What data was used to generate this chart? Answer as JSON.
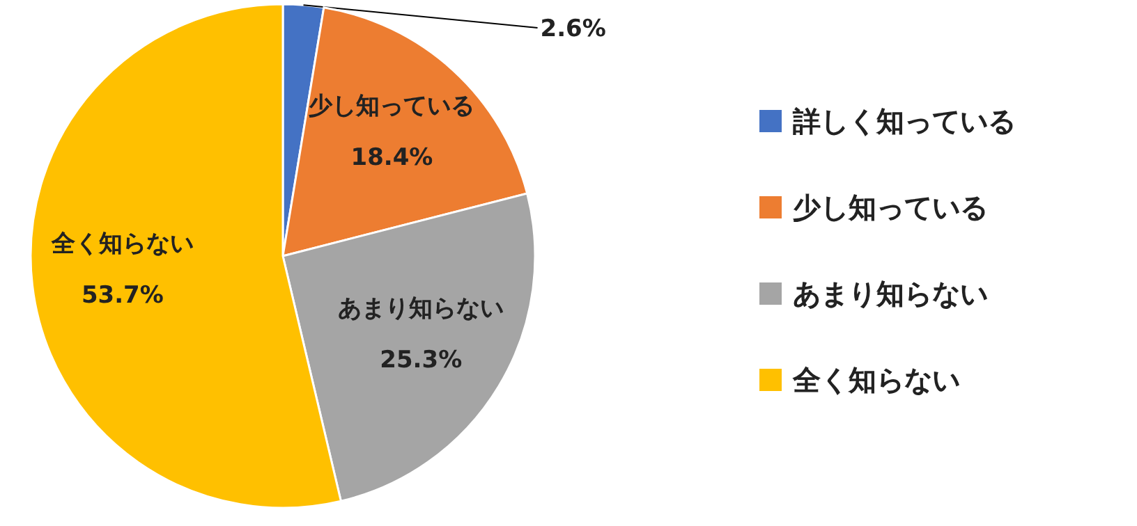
{
  "chart_data": {
    "type": "pie",
    "categories": [
      "詳しく知っている",
      "少し知っている",
      "あまり知らない",
      "全く知らない"
    ],
    "values": [
      2.6,
      18.4,
      25.3,
      53.7
    ],
    "colors": [
      "#4472c4",
      "#ed7d31",
      "#a5a5a5",
      "#ffc000"
    ],
    "value_labels": [
      "2.6%",
      "少し知っている\n18.4%",
      "あまり知らない\n25.3%",
      "全く知らない\n53.7%"
    ],
    "legend": "right"
  }
}
